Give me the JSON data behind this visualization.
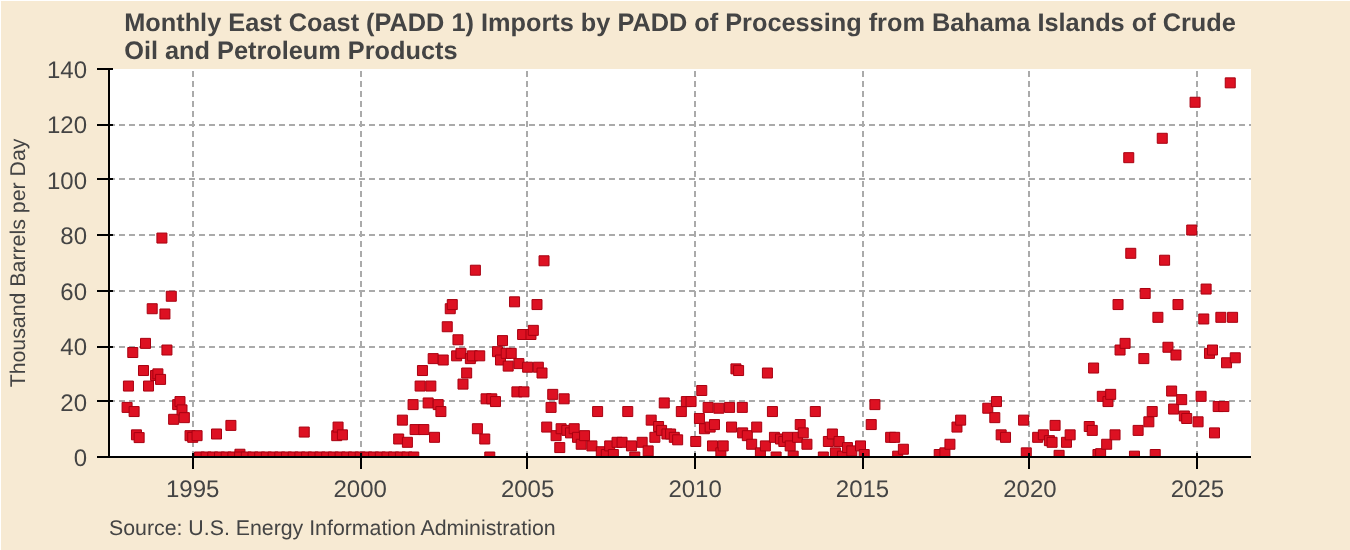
{
  "chart_data": {
    "type": "scatter",
    "title": "Monthly East Coast (PADD 1) Imports by PADD of Processing from Bahama Islands of Crude Oil and Petroleum Products",
    "ylabel": "Thousand Barrels per Day",
    "annotations": [
      "Source: U.S. Energy Information Administration"
    ],
    "xlim": [
      1992.5,
      2026.6
    ],
    "xticks": [
      1995,
      2000,
      2005,
      2010,
      2015,
      2020,
      2025
    ],
    "ylim": [
      0,
      140
    ],
    "yticks": [
      0,
      20,
      40,
      60,
      80,
      100,
      120,
      140
    ],
    "grid": true,
    "marker": "square",
    "series": [
      {
        "color": "#dd1122",
        "x": [
          1993.04,
          1993.08,
          1993.21,
          1993.25,
          1993.32,
          1993.4,
          1993.53,
          1993.59,
          1993.68,
          1993.79,
          1993.89,
          1993.96,
          1994.04,
          1994.08,
          1994.17,
          1994.23,
          1994.36,
          1994.43,
          1994.55,
          1994.62,
          1994.68,
          1994.75,
          1994.92,
          1995.0,
          1995.13,
          1995.2,
          1995.4,
          1995.6,
          1995.71,
          1995.8,
          1996.0,
          1996.14,
          1996.2,
          1996.41,
          1996.4,
          1996.6,
          1996.8,
          1997.0,
          1997.2,
          1997.4,
          1997.6,
          1997.8,
          1998.0,
          1998.2,
          1998.33,
          1998.4,
          1998.6,
          1998.8,
          1999.0,
          1999.2,
          1999.3,
          1999.34,
          1999.47,
          1999.4,
          1999.6,
          1999.8,
          2000.0,
          2000.2,
          2000.4,
          2000.6,
          2000.8,
          2001.0,
          2001.15,
          2001.2,
          2001.26,
          2001.41,
          2001.4,
          2001.58,
          2001.6,
          2001.64,
          2001.79,
          2001.86,
          2001.9,
          2002.03,
          2002.11,
          2002.18,
          2002.22,
          2002.33,
          2002.41,
          2002.48,
          2002.6,
          2002.69,
          2002.75,
          2002.88,
          2002.92,
          2003.01,
          2003.07,
          2003.18,
          2003.29,
          2003.35,
          2003.44,
          2003.5,
          2003.57,
          2003.72,
          2003.76,
          2003.87,
          2003.93,
          2004.04,
          2004.1,
          2004.19,
          2004.25,
          2004.36,
          2004.42,
          2004.51,
          2004.61,
          2004.68,
          2004.74,
          2004.85,
          2004.89,
          2005.0,
          2005.1,
          2005.17,
          2005.28,
          2005.32,
          2005.43,
          2005.49,
          2005.57,
          2005.7,
          2005.75,
          2005.85,
          2005.96,
          2006.0,
          2006.09,
          2006.17,
          2006.28,
          2006.39,
          2006.49,
          2006.6,
          2006.7,
          2006.92,
          2007.09,
          2007.2,
          2007.35,
          2007.45,
          2007.56,
          2007.67,
          2007.82,
          2007.99,
          2008.1,
          2008.2,
          2008.42,
          2008.6,
          2008.69,
          2008.8,
          2008.91,
          2009.0,
          2009.08,
          2009.16,
          2009.27,
          2009.38,
          2009.48,
          2009.59,
          2009.74,
          2009.88,
          2010.02,
          2010.13,
          2010.2,
          2010.28,
          2010.39,
          2010.45,
          2010.52,
          2010.58,
          2010.71,
          2010.77,
          2010.84,
          2011.03,
          2011.09,
          2011.22,
          2011.3,
          2011.41,
          2011.42,
          2011.56,
          2011.69,
          2011.84,
          2011.95,
          2012.1,
          2012.16,
          2012.31,
          2012.37,
          2012.42,
          2012.55,
          2012.65,
          2012.76,
          2012.84,
          2012.93,
          2013.06,
          2013.14,
          2013.23,
          2013.34,
          2013.59,
          2013.83,
          2013.98,
          2014.1,
          2014.19,
          2014.3,
          2014.4,
          2014.55,
          2014.68,
          2014.94,
          2015.05,
          2015.26,
          2015.37,
          2015.84,
          2015.96,
          2016.05,
          2016.22,
          2017.29,
          2017.46,
          2017.61,
          2017.82,
          2017.93,
          2018.74,
          2018.95,
          2019.0,
          2019.14,
          2019.27,
          2019.81,
          2019.89,
          2020.23,
          2020.4,
          2020.58,
          2020.66,
          2020.75,
          2020.87,
          2021.09,
          2021.2,
          2021.77,
          2021.86,
          2021.9,
          2022.03,
          2022.11,
          2022.16,
          2022.29,
          2022.33,
          2022.41,
          2022.54,
          2022.63,
          2022.69,
          2022.84,
          2022.95,
          2023.01,
          2023.12,
          2023.23,
          2023.4,
          2023.44,
          2023.55,
          2023.65,
          2023.74,
          2023.82,
          2023.95,
          2024.02,
          2024.12,
          2024.23,
          2024.29,
          2024.36,
          2024.42,
          2024.53,
          2024.61,
          2024.68,
          2024.83,
          2024.93,
          2025.02,
          2025.11,
          2025.19,
          2025.26,
          2025.36,
          2025.45,
          2025.51,
          2025.62,
          2025.7,
          2025.79,
          2025.87,
          2025.98,
          2026.05,
          2026.13
        ],
        "values": [
          17.9,
          25.6,
          37.7,
          16.4,
          8,
          7,
          31.2,
          41,
          25.6,
          53.5,
          29.4,
          30,
          28,
          79,
          51.6,
          38.6,
          58,
          13.6,
          18.9,
          20,
          17,
          14.2,
          7.7,
          7.1,
          7.7,
          0,
          0,
          0,
          8.3,
          0,
          0,
          11.4,
          0,
          1,
          0,
          0,
          0,
          0,
          0,
          0,
          0,
          0,
          0,
          0,
          9,
          0,
          0,
          0,
          0,
          0,
          7.7,
          10.8,
          8,
          0,
          0,
          0,
          0,
          0,
          0,
          0,
          0,
          0,
          6.5,
          0,
          13.3,
          5.3,
          0,
          18.9,
          0,
          9.9,
          25.6,
          31.2,
          9.9,
          19.5,
          25.6,
          35.5,
          7.1,
          18.9,
          16.4,
          35,
          47,
          53.5,
          55,
          36.5,
          42.3,
          37.4,
          26.3,
          30.3,
          35.5,
          36.5,
          67.4,
          10.2,
          36.5,
          6.5,
          21,
          0,
          21,
          20,
          38,
          35,
          42,
          37.4,
          32.8,
          37.4,
          56,
          23.5,
          33.7,
          44.2,
          23.5,
          32.4,
          44.2,
          45.7,
          55,
          32.4,
          30.3,
          70.8,
          10.8,
          17.9,
          22.6,
          7.7,
          3.4,
          10.2,
          21,
          9.6,
          8.7,
          10.2,
          7.1,
          4.6,
          7.7,
          4,
          16.4,
          1.9,
          0.9,
          4,
          0.9,
          5.3,
          5.3,
          16.4,
          4,
          0,
          5.3,
          2.2,
          13.3,
          7.1,
          11,
          9.6,
          19.5,
          8.3,
          8.3,
          7.1,
          6.2,
          16.4,
          20,
          20,
          5.6,
          13.9,
          24,
          10.2,
          17.9,
          10.8,
          4,
          11.7,
          17.6,
          1.5,
          4,
          17.9,
          10.8,
          31.8,
          31.2,
          17.9,
          8.7,
          7.7,
          4.6,
          10.8,
          1.5,
          4,
          30.3,
          16.4,
          7.1,
          0,
          6.5,
          5.6,
          7.1,
          4,
          0.3,
          7.1,
          11.7,
          8.7,
          4.6,
          16.4,
          0,
          5.6,
          8.3,
          1.5,
          5.6,
          0.3,
          3.4,
          2.2,
          4,
          0.9,
          11.7,
          18.9,
          7.1,
          7.1,
          0.3,
          2.8,
          0.9,
          1.5,
          4.6,
          10.8,
          13.3,
          17.6,
          14.2,
          20,
          8,
          7.1,
          13.3,
          1.5,
          7.1,
          8,
          5.9,
          5.3,
          11.4,
          0.6,
          5.3,
          8,
          11,
          9.6,
          32.1,
          0.9,
          1.2,
          21.9,
          4.6,
          20,
          22.6,
          8,
          55,
          38.6,
          41,
          108,
          73.5,
          0.3,
          9.6,
          35.5,
          59,
          12.7,
          16.4,
          0.9,
          50.4,
          115,
          71,
          39.6,
          23.8,
          17.3,
          36.8,
          55,
          20.7,
          14.8,
          13.9,
          81.9,
          128,
          12.7,
          21.9,
          49.8,
          60.6,
          37.4,
          38.6,
          8.7,
          18.2,
          50.4,
          18.2,
          34,
          135,
          50.4,
          35.8
        ]
      }
    ]
  }
}
